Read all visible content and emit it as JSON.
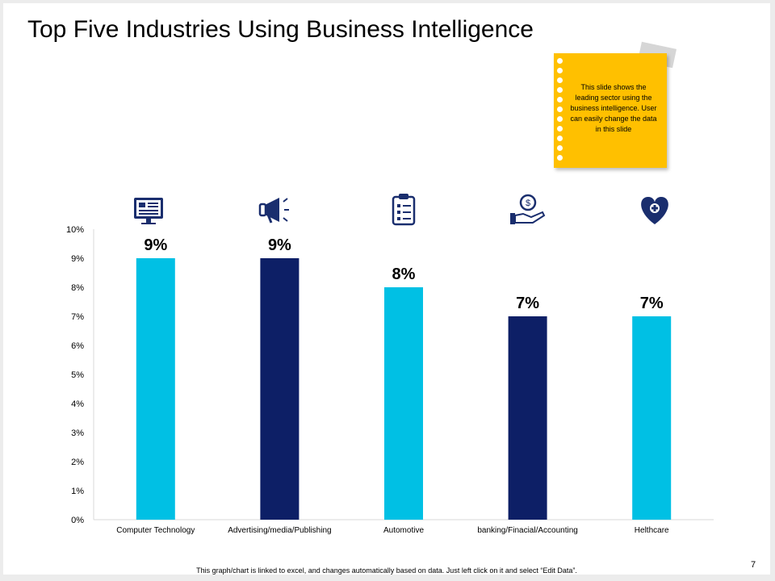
{
  "slide": {
    "title": "Top Five Industries Using Business Intelligence",
    "note": "This slide shows the leading sector using the business intelligence. User can easily change the data in this slide",
    "footer": "This graph/chart is linked to excel, and changes automatically based on data. Just left click on it and select “Edit Data”.",
    "page_number": "7"
  },
  "colors": {
    "light_blue": "#00c0e4",
    "dark_blue": "#0d1f66",
    "note_yellow": "#ffc000",
    "icon_navy": "#1a2e6e"
  },
  "icons": [
    "computer-monitor-icon",
    "megaphone-icon",
    "clipboard-checklist-icon",
    "hand-holding-money-icon",
    "heart-health-icon"
  ],
  "chart_data": {
    "type": "bar",
    "title": "Top Five Industries Using Business Intelligence",
    "categories": [
      "Computer Technology",
      "Advertising/media/Publishing",
      "Automotive",
      "banking/Finacial/Accounting",
      "Helthcare"
    ],
    "values": [
      9,
      9,
      8,
      7,
      7
    ],
    "data_labels": [
      "9%",
      "9%",
      "8%",
      "7%",
      "7%"
    ],
    "bar_colors": [
      "#00c0e4",
      "#0d1f66",
      "#00c0e4",
      "#0d1f66",
      "#00c0e4"
    ],
    "ylim": [
      0,
      10
    ],
    "yticks": [
      "0%",
      "1%",
      "2%",
      "3%",
      "4%",
      "5%",
      "6%",
      "7%",
      "8%",
      "9%",
      "10%"
    ],
    "xlabel": "",
    "ylabel": "",
    "grid": false,
    "legend": "none"
  }
}
